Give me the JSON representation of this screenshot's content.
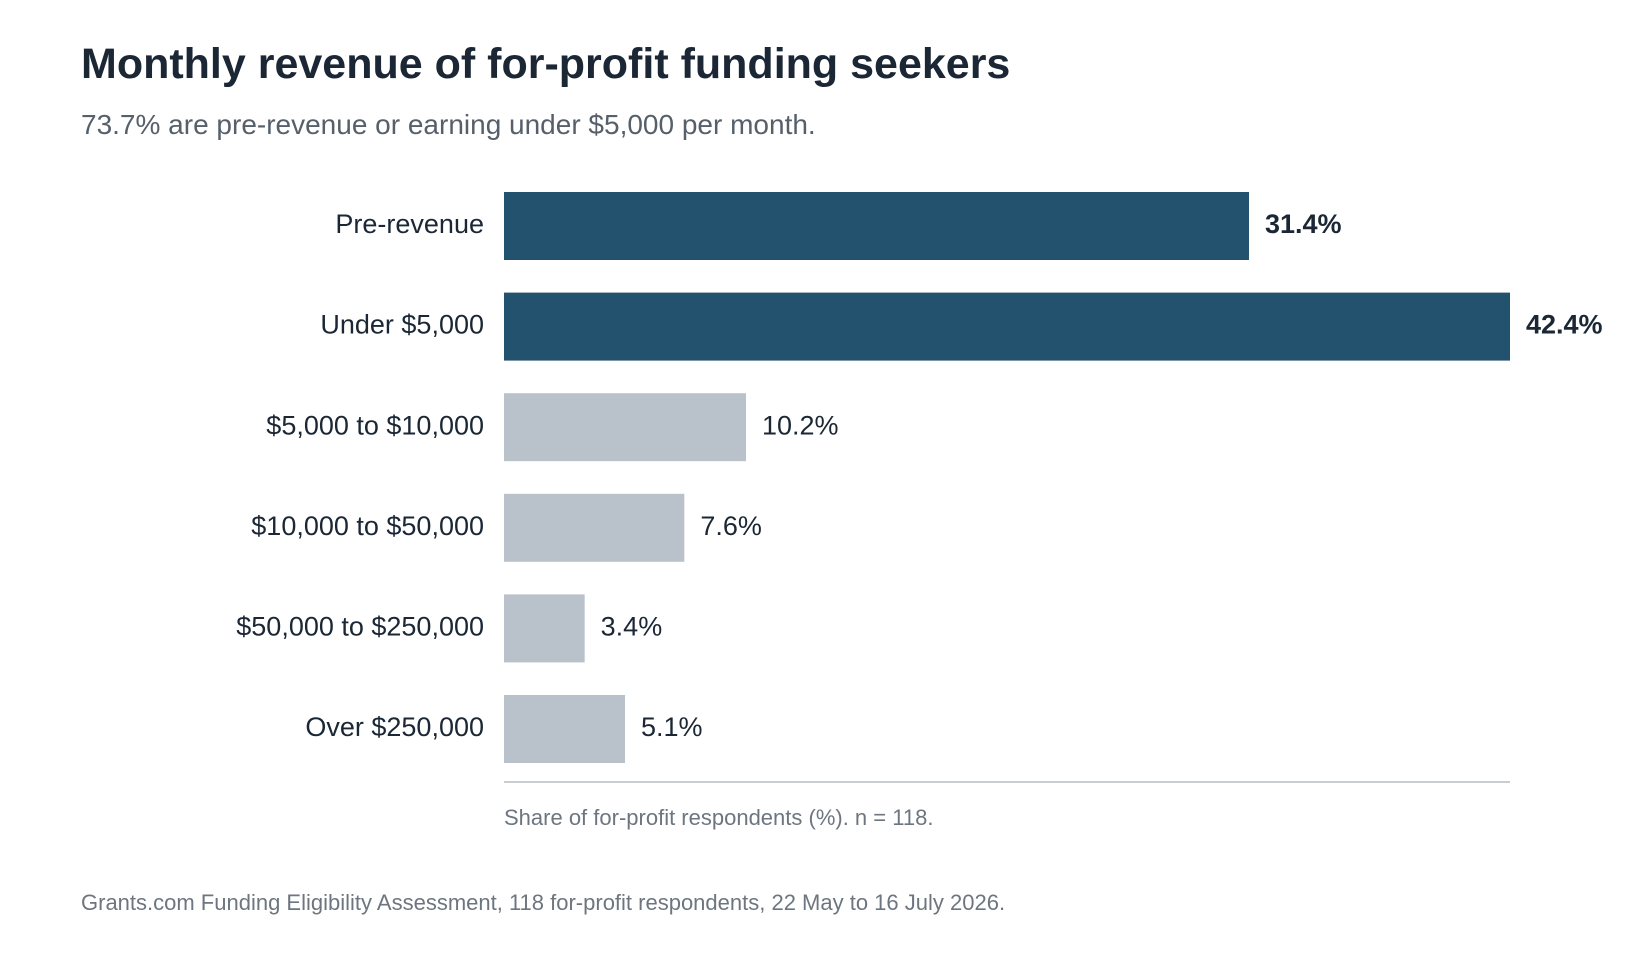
{
  "header": {
    "title": "Monthly revenue of for-profit funding seekers",
    "subtitle": "73.7% are pre-revenue or earning under $5,000 per month."
  },
  "chart_data": {
    "type": "bar",
    "orientation": "horizontal",
    "categories": [
      "Pre-revenue",
      "Under $5,000",
      "$5,000 to $10,000",
      "$10,000 to $50,000",
      "$50,000 to $250,000",
      "Over $250,000"
    ],
    "values": [
      31.4,
      42.4,
      10.2,
      7.6,
      3.4,
      5.1
    ],
    "value_labels": [
      "31.4%",
      "42.4%",
      "10.2%",
      "7.6%",
      "3.4%",
      "5.1%"
    ],
    "highlighted": [
      true,
      true,
      false,
      false,
      false,
      false
    ],
    "xlim": [
      0,
      42.4
    ],
    "axis_note": "Share of for-profit respondents (%). n = 118.",
    "grid": false,
    "legend": "none",
    "colors": {
      "highlight": "#23526e",
      "base": "#b9c2cb",
      "axis": "#c8cdd2"
    }
  },
  "footer": {
    "source": "Grants.com Funding Eligibility Assessment, 118 for-profit respondents, 22 May to 16 July 2026."
  }
}
